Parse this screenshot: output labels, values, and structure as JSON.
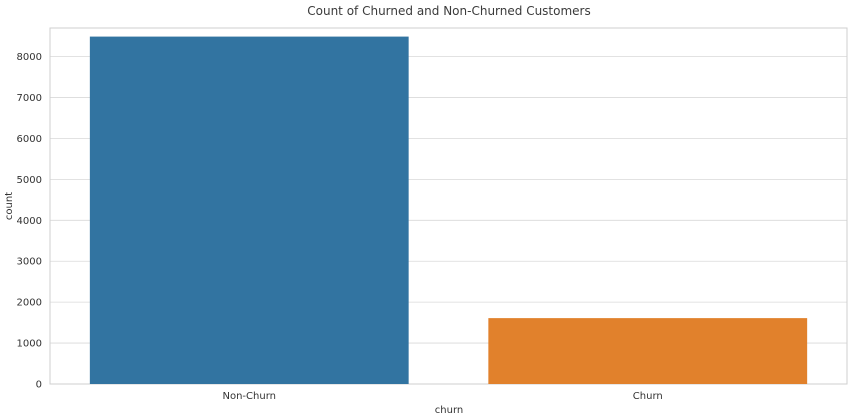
{
  "chart_data": {
    "type": "bar",
    "title": "Count of Churned and Non-Churned Customers",
    "xlabel": "churn",
    "ylabel": "count",
    "categories": [
      "Non-Churn",
      "Churn"
    ],
    "values": [
      8490,
      1610
    ],
    "colors": [
      "#3274a1",
      "#e1812c"
    ],
    "ylim": [
      0,
      8700
    ],
    "yticks": [
      0,
      1000,
      2000,
      3000,
      4000,
      5000,
      6000,
      7000,
      8000
    ],
    "grid": true,
    "legend": "none"
  }
}
